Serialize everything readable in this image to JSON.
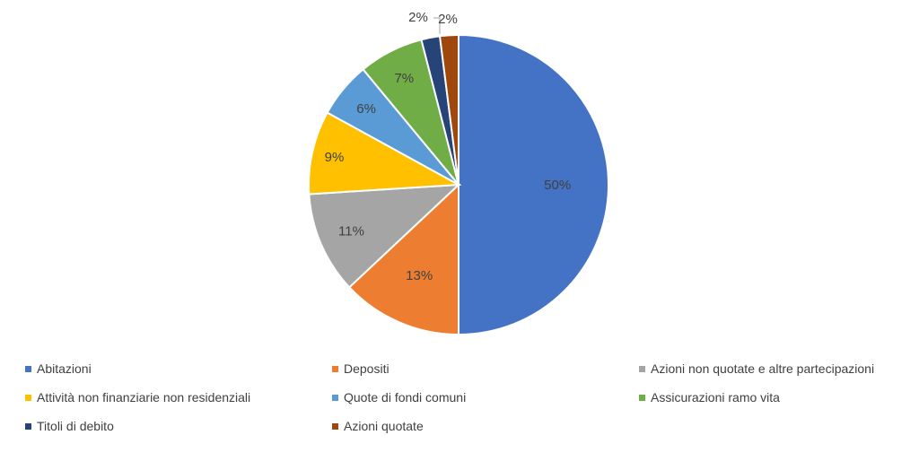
{
  "chart_data": {
    "type": "pie",
    "title": "",
    "legend_position": "bottom",
    "slices": [
      {
        "name": "Abitazioni",
        "value": 50,
        "label": "50%",
        "color": "#4472C4"
      },
      {
        "name": "Depositi",
        "value": 13,
        "label": "13%",
        "color": "#ED7D31"
      },
      {
        "name": "Azioni non quotate e altre partecipazioni",
        "value": 11,
        "label": "11%",
        "color": "#A5A5A5"
      },
      {
        "name": "Attività non finanziarie non residenziali",
        "value": 9,
        "label": "9%",
        "color": "#FFC000"
      },
      {
        "name": "Quote di fondi comuni",
        "value": 6,
        "label": "6%",
        "color": "#5B9BD5"
      },
      {
        "name": "Assicurazioni ramo vita",
        "value": 7,
        "label": "7%",
        "color": "#70AD47"
      },
      {
        "name": "Titoli di debito",
        "value": 2,
        "label": "2%",
        "color": "#264478"
      },
      {
        "name": "Azioni quotate",
        "value": 2,
        "label": "2%",
        "color": "#9E480E"
      }
    ]
  }
}
